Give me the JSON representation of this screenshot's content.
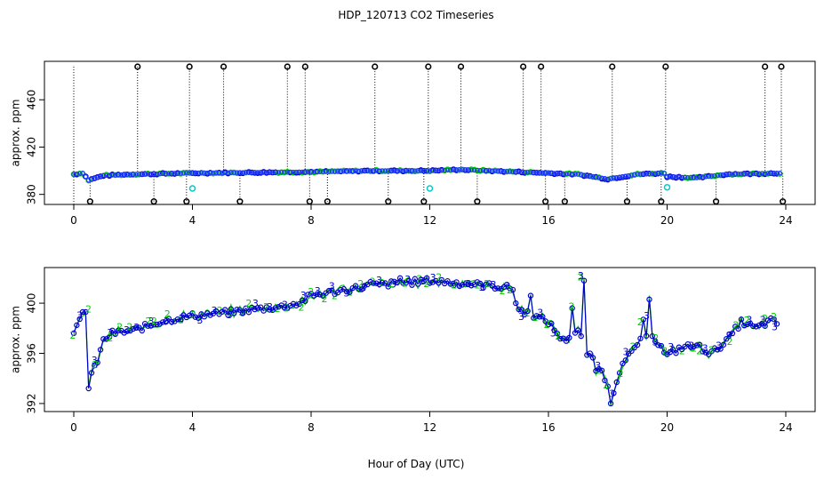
{
  "title": "HDP_120713  CO2 Timeseries",
  "xlabel": "Hour of Day (UTC)",
  "colors": {
    "axis": "#000000",
    "series3": "#0000cc",
    "series2": "#00cc00",
    "marker_fill_blue": "#1e3cff",
    "flag": "#000000",
    "cyan": "#00cccc"
  },
  "chart_data": [
    {
      "type": "scatter",
      "name": "top-panel",
      "ylabel": "approx. ppm",
      "xlim": [
        0,
        24
      ],
      "ylim": [
        373,
        491
      ],
      "xticks": [
        "0",
        "4",
        "8",
        "12",
        "16",
        "20",
        "24"
      ],
      "xtick_values": [
        0,
        4,
        8,
        12,
        16,
        20,
        24
      ],
      "yticks": [
        "380",
        "420",
        "460"
      ],
      "ytick_values": [
        380,
        420,
        460
      ],
      "baseline_profile": [
        [
          0,
          397
        ],
        [
          0.3,
          398
        ],
        [
          0.5,
          392
        ],
        [
          1,
          396
        ],
        [
          2,
          397
        ],
        [
          4,
          398
        ],
        [
          6,
          398.5
        ],
        [
          8,
          399
        ],
        [
          10,
          400
        ],
        [
          12,
          400
        ],
        [
          13,
          401
        ],
        [
          15,
          399
        ],
        [
          16,
          398
        ],
        [
          17,
          397
        ],
        [
          18,
          393
        ],
        [
          19,
          397
        ],
        [
          19.9,
          398
        ],
        [
          20,
          395
        ],
        [
          21,
          394
        ],
        [
          22,
          397
        ],
        [
          23.8,
          398
        ]
      ],
      "high_flags_x": [
        2.15,
        3.9,
        5.05,
        7.2,
        7.8,
        10.15,
        11.95,
        13.05,
        15.15,
        15.75,
        18.15,
        19.95,
        23.3,
        23.85
      ],
      "high_flag_value": 488,
      "low_flags_x": [
        0.55,
        2.7,
        3.8,
        5.6,
        7.95,
        8.55,
        10.6,
        11.8,
        13.6,
        15.9,
        16.55,
        18.65,
        19.8,
        21.65,
        23.9
      ],
      "low_flag_value": 374,
      "cyan_points": [
        [
          4.0,
          385
        ],
        [
          12.0,
          385
        ],
        [
          20.0,
          386
        ]
      ]
    },
    {
      "type": "line",
      "name": "bottom-panel",
      "ylabel": "approx. ppm",
      "xlim": [
        0,
        24
      ],
      "ylim": [
        391.5,
        402.7
      ],
      "xticks": [
        "0",
        "4",
        "8",
        "12",
        "16",
        "20",
        "24"
      ],
      "xtick_values": [
        0,
        4,
        8,
        12,
        16,
        20,
        24
      ],
      "yticks": [
        "392",
        "396",
        "400"
      ],
      "ytick_values": [
        392,
        396,
        400
      ],
      "series": [
        {
          "name": "3",
          "symbol": "3",
          "color": "#0000cc"
        },
        {
          "name": "2",
          "symbol": "2",
          "color": "#00cc00"
        }
      ],
      "profile": [
        [
          0,
          397.5
        ],
        [
          0.25,
          398.8
        ],
        [
          0.45,
          397
        ],
        [
          0.55,
          394.2
        ],
        [
          0.75,
          395
        ],
        [
          1,
          397
        ],
        [
          1.3,
          397.6
        ],
        [
          2,
          397.8
        ],
        [
          3,
          398.6
        ],
        [
          4,
          399
        ],
        [
          5,
          399.2
        ],
        [
          6,
          399.5
        ],
        [
          7,
          399.7
        ],
        [
          7.6,
          400
        ],
        [
          8,
          400.6
        ],
        [
          9,
          401
        ],
        [
          10,
          401.4
        ],
        [
          11,
          401.6
        ],
        [
          12,
          401.8
        ],
        [
          13,
          401.6
        ],
        [
          14,
          401.4
        ],
        [
          14.8,
          401.2
        ],
        [
          15,
          399.5
        ],
        [
          15.5,
          399
        ],
        [
          16,
          398.5
        ],
        [
          16.5,
          397
        ],
        [
          17,
          397.8
        ],
        [
          17.3,
          396
        ],
        [
          17.6,
          395.5
        ],
        [
          18,
          393.5
        ],
        [
          18.2,
          393
        ],
        [
          18.5,
          395
        ],
        [
          19,
          396.8
        ],
        [
          19.5,
          397.5
        ],
        [
          20,
          395.8
        ],
        [
          20.5,
          396.5
        ],
        [
          21,
          396.6
        ],
        [
          21.5,
          396
        ],
        [
          22,
          397
        ],
        [
          22.5,
          398.5
        ],
        [
          23,
          398
        ],
        [
          23.5,
          398.6
        ],
        [
          23.8,
          398.3
        ]
      ],
      "spikes": [
        [
          0.35,
          399.3
        ],
        [
          0.5,
          393.2
        ],
        [
          10,
          401.7
        ],
        [
          11,
          402
        ],
        [
          14.9,
          400
        ],
        [
          15.4,
          400.6
        ],
        [
          16.8,
          399.6
        ],
        [
          17.2,
          401.8
        ],
        [
          17.4,
          396
        ],
        [
          17.6,
          394.6
        ],
        [
          18.1,
          392
        ],
        [
          18.3,
          393.7
        ],
        [
          19.2,
          398.7
        ],
        [
          19.4,
          400.3
        ],
        [
          19.8,
          396.6
        ]
      ]
    }
  ]
}
